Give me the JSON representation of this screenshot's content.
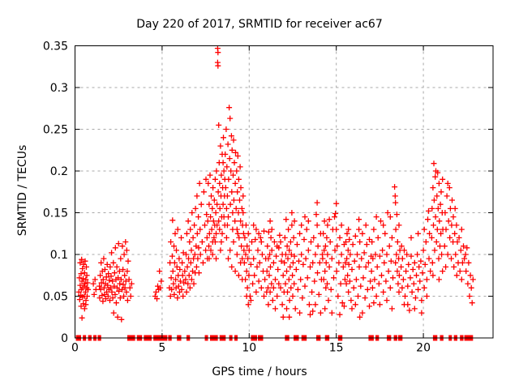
{
  "chart_data": {
    "type": "scatter",
    "title": "Day 220 of 2017, SRMTID for receiver ac67",
    "xlabel": "GPS time / hours",
    "ylabel": "SRMTID / TECUs",
    "xlim": [
      0,
      24
    ],
    "ylim": [
      0,
      0.35
    ],
    "xticks": [
      0,
      5,
      10,
      15,
      20
    ],
    "xtick_labels": [
      "0",
      "5",
      "10",
      "15",
      "20"
    ],
    "yticks": [
      0,
      0.05,
      0.1,
      0.15,
      0.2,
      0.25,
      0.3,
      0.35
    ],
    "ytick_labels": [
      "0",
      "0.05",
      "0.1",
      "0.15",
      "0.2",
      "0.25",
      "0.3",
      "0.35"
    ],
    "grid": true,
    "legend": "none",
    "marker": "plus",
    "marker_color": "#ff0000",
    "grid_color": "#a8a8a8",
    "axis_color": "#000000",
    "xy_format": "flat [x0,y0,x1,y1,...]",
    "xy": [
      0.22,
      0.055,
      0.25,
      0.072,
      0.27,
      0.046,
      0.3,
      0.09,
      0.3,
      0.063,
      0.33,
      0.051,
      0.35,
      0.077,
      0.36,
      0.058,
      0.38,
      0.094,
      0.4,
      0.068,
      0.42,
      0.049,
      0.43,
      0.083,
      0.45,
      0.06,
      0.47,
      0.071,
      0.48,
      0.041,
      0.5,
      0.088,
      0.52,
      0.065,
      0.53,
      0.05,
      0.55,
      0.078,
      0.57,
      0.062,
      0.58,
      0.092,
      0.6,
      0.055,
      0.62,
      0.07,
      0.63,
      0.045,
      0.65,
      0.085,
      0.67,
      0.06,
      0.68,
      0.075,
      0.7,
      0.05,
      0.72,
      0.066,
      0.75,
      0.058,
      0.4,
      0.024,
      0.55,
      0.035,
      1.05,
      0.065,
      1.1,
      0.052,
      1.15,
      0.07,
      1.2,
      0.058,
      0.35,
      0.038,
      0.62,
      0.04,
      1.4,
      0.062,
      1.42,
      0.048,
      1.45,
      0.075,
      1.47,
      0.058,
      1.5,
      0.09,
      1.52,
      0.066,
      1.55,
      0.051,
      1.57,
      0.08,
      1.6,
      0.044,
      1.62,
      0.07,
      1.65,
      0.095,
      1.67,
      0.06,
      1.7,
      0.052,
      1.72,
      0.082,
      1.75,
      0.065,
      1.77,
      0.047,
      1.8,
      0.073,
      1.82,
      0.055,
      1.85,
      0.088,
      1.87,
      0.063,
      1.9,
      0.05,
      1.92,
      0.077,
      1.95,
      0.058,
      1.97,
      0.069,
      2.0,
      0.045,
      2.02,
      0.085,
      2.05,
      0.06,
      2.07,
      0.074,
      2.1,
      0.102,
      2.12,
      0.055,
      2.15,
      0.068,
      2.17,
      0.048,
      2.2,
      0.09,
      2.22,
      0.03,
      2.25,
      0.062,
      2.27,
      0.078,
      2.3,
      0.052,
      2.32,
      0.108,
      2.35,
      0.07,
      2.37,
      0.042,
      2.4,
      0.085,
      2.42,
      0.06,
      2.45,
      0.025,
      2.47,
      0.072,
      2.5,
      0.113,
      2.52,
      0.056,
      2.55,
      0.08,
      2.57,
      0.065,
      2.6,
      0.048,
      2.62,
      0.095,
      2.65,
      0.07,
      2.67,
      0.022,
      2.7,
      0.058,
      2.72,
      0.11,
      2.75,
      0.082,
      2.77,
      0.064,
      2.8,
      0.05,
      2.82,
      0.1,
      2.85,
      0.075,
      2.87,
      0.06,
      2.9,
      0.115,
      2.92,
      0.068,
      2.95,
      0.055,
      2.97,
      0.105,
      3.0,
      0.08,
      3.02,
      0.045,
      3.05,
      0.092,
      3.1,
      0.07,
      3.15,
      0.06,
      3.2,
      0.05,
      3.25,
      0.065,
      4.6,
      0.05,
      4.65,
      0.055,
      4.7,
      0.047,
      4.75,
      0.062,
      4.8,
      0.058,
      4.85,
      0.08,
      4.9,
      0.06,
      4.95,
      0.068,
      5.42,
      0.06,
      5.45,
      0.09,
      5.48,
      0.05,
      5.5,
      0.115,
      5.52,
      0.072,
      5.55,
      0.058,
      5.58,
      0.098,
      5.6,
      0.141,
      5.62,
      0.08,
      5.65,
      0.065,
      5.68,
      0.11,
      5.7,
      0.052,
      5.72,
      0.09,
      5.75,
      0.125,
      5.78,
      0.07,
      5.8,
      0.06,
      5.82,
      0.105,
      5.85,
      0.085,
      5.88,
      0.048,
      5.9,
      0.13,
      5.92,
      0.075,
      5.95,
      0.062,
      5.98,
      0.095,
      6.0,
      0.055,
      6.02,
      0.082,
      6.05,
      0.068,
      6.1,
      0.12,
      6.12,
      0.058,
      6.15,
      0.09,
      6.18,
      0.075,
      6.2,
      0.05,
      6.22,
      0.102,
      6.25,
      0.066,
      6.3,
      0.08,
      6.35,
      0.07,
      6.38,
      0.1,
      6.4,
      0.055,
      6.42,
      0.125,
      6.45,
      0.085,
      6.48,
      0.065,
      6.5,
      0.14,
      6.52,
      0.095,
      6.55,
      0.075,
      6.58,
      0.115,
      6.6,
      0.06,
      6.62,
      0.13,
      6.65,
      0.09,
      6.68,
      0.105,
      6.7,
      0.07,
      6.72,
      0.15,
      6.75,
      0.08,
      6.78,
      0.12,
      6.8,
      0.095,
      6.82,
      0.065,
      6.85,
      0.135,
      6.88,
      0.1,
      6.9,
      0.078,
      6.92,
      0.155,
      6.95,
      0.11,
      6.98,
      0.085,
      7.0,
      0.17,
      7.02,
      0.125,
      7.05,
      0.095,
      7.08,
      0.145,
      7.1,
      0.108,
      7.12,
      0.078,
      7.15,
      0.185,
      7.18,
      0.13,
      7.2,
      0.1,
      7.25,
      0.16,
      7.3,
      0.115,
      7.35,
      0.09,
      7.4,
      0.175,
      7.45,
      0.135,
      7.5,
      0.105,
      7.52,
      0.19,
      7.55,
      0.148,
      7.58,
      0.12,
      7.6,
      0.095,
      7.62,
      0.14,
      7.65,
      0.185,
      7.68,
      0.11,
      7.7,
      0.16,
      7.72,
      0.125,
      7.75,
      0.195,
      7.78,
      0.145,
      7.8,
      0.105,
      7.82,
      0.17,
      7.85,
      0.13,
      7.88,
      0.155,
      7.9,
      0.115,
      7.92,
      0.18,
      7.95,
      0.14,
      7.98,
      0.12,
      8.0,
      0.165,
      8.02,
      0.135,
      8.05,
      0.19,
      8.08,
      0.15,
      8.1,
      0.125,
      8.12,
      0.2,
      8.15,
      0.16,
      8.19,
      0.347,
      8.21,
      0.342,
      8.19,
      0.33,
      8.21,
      0.326,
      8.22,
      0.175,
      8.25,
      0.14,
      8.28,
      0.21,
      8.3,
      0.185,
      8.32,
      0.155,
      8.35,
      0.23,
      8.38,
      0.17,
      8.4,
      0.195,
      8.42,
      0.145,
      8.45,
      0.22,
      8.48,
      0.18,
      8.5,
      0.16,
      8.52,
      0.24,
      8.55,
      0.2,
      8.58,
      0.17,
      8.6,
      0.19,
      8.05,
      0.115,
      8.3,
      0.13,
      8.45,
      0.125,
      8.55,
      0.145,
      8.1,
      0.095,
      8.35,
      0.105,
      8.6,
      0.135,
      7.7,
      0.095,
      7.9,
      0.1,
      8.25,
      0.255,
      8.5,
      0.21,
      8.4,
      0.115,
      8.15,
      0.135,
      8.62,
      0.22,
      8.65,
      0.18,
      8.68,
      0.25,
      8.7,
      0.155,
      8.72,
      0.205,
      8.75,
      0.17,
      8.78,
      0.232,
      8.8,
      0.145,
      8.82,
      0.19,
      8.85,
      0.276,
      8.88,
      0.215,
      8.9,
      0.263,
      8.92,
      0.16,
      8.95,
      0.2,
      8.98,
      0.242,
      9.0,
      0.175,
      9.02,
      0.225,
      9.05,
      0.15,
      9.08,
      0.195,
      9.1,
      0.237,
      9.12,
      0.165,
      9.15,
      0.21,
      9.18,
      0.14,
      9.2,
      0.185,
      9.22,
      0.222,
      9.25,
      0.155,
      9.28,
      0.2,
      9.3,
      0.13,
      9.32,
      0.175,
      9.35,
      0.218,
      9.38,
      0.15,
      9.4,
      0.19,
      9.42,
      0.12,
      9.45,
      0.165,
      9.48,
      0.205,
      9.5,
      0.14,
      9.52,
      0.18,
      9.55,
      0.11,
      9.58,
      0.155,
      9.6,
      0.095,
      9.62,
      0.135,
      9.65,
      0.17,
      9.68,
      0.125,
      9.7,
      0.105,
      8.7,
      0.12,
      8.9,
      0.105,
      9.1,
      0.115,
      9.3,
      0.1,
      9.5,
      0.09,
      8.8,
      0.095,
      9.0,
      0.085,
      9.2,
      0.08,
      9.4,
      0.075,
      9.6,
      0.07,
      8.75,
      0.135,
      9.05,
      0.13,
      9.35,
      0.125,
      9.65,
      0.15,
      9.72,
      0.09,
      9.75,
      0.12,
      9.78,
      0.07,
      9.8,
      0.1,
      9.82,
      0.135,
      9.85,
      0.08,
      9.88,
      0.11,
      9.9,
      0.06,
      9.92,
      0.095,
      9.95,
      0.125,
      9.98,
      0.075,
      10.0,
      0.105,
      10.05,
      0.05,
      10.1,
      0.088,
      10.15,
      0.115,
      10.2,
      0.065,
      10.25,
      0.095,
      10.3,
      0.075,
      10.35,
      0.118,
      10.4,
      0.055,
      10.45,
      0.085,
      10.5,
      0.105,
      10.55,
      0.068,
      10.6,
      0.09,
      10.65,
      0.12,
      10.7,
      0.06,
      10.75,
      0.1,
      10.8,
      0.08,
      10.85,
      0.128,
      10.9,
      0.07,
      10.95,
      0.095,
      11.0,
      0.055,
      10.1,
      0.045,
      10.4,
      0.13,
      10.7,
      0.115,
      9.85,
      0.05,
      10.55,
      0.125,
      10.25,
      0.135,
      9.95,
      0.04,
      10.85,
      0.05,
      11.02,
      0.08,
      11.05,
      0.11,
      11.08,
      0.06,
      11.1,
      0.095,
      11.12,
      0.127,
      11.15,
      0.075,
      11.18,
      0.1,
      11.2,
      0.055,
      11.22,
      0.085,
      11.25,
      0.12,
      11.28,
      0.065,
      11.3,
      0.105,
      11.35,
      0.045,
      11.4,
      0.09,
      11.45,
      0.115,
      11.5,
      0.07,
      11.55,
      0.098,
      11.6,
      0.05,
      11.65,
      0.082,
      11.7,
      0.108,
      11.75,
      0.123,
      11.8,
      0.06,
      11.85,
      0.092,
      11.9,
      0.04,
      11.95,
      0.075,
      12.0,
      0.055,
      11.3,
      0.13,
      11.5,
      0.035,
      11.7,
      0.065,
      11.9,
      0.1,
      11.1,
      0.04,
      11.6,
      0.11,
      11.4,
      0.06,
      11.8,
      0.115,
      11.2,
      0.14,
      11.95,
      0.025,
      12.02,
      0.09,
      12.05,
      0.12,
      12.08,
      0.065,
      12.1,
      0.1,
      12.12,
      0.142,
      12.15,
      0.08,
      12.18,
      0.11,
      12.2,
      0.055,
      12.22,
      0.095,
      12.25,
      0.13,
      12.28,
      0.07,
      12.3,
      0.105,
      12.32,
      0.045,
      12.35,
      0.085,
      12.38,
      0.115,
      12.4,
      0.06,
      12.42,
      0.1,
      12.45,
      0.135,
      12.48,
      0.075,
      12.5,
      0.05,
      12.52,
      0.09,
      12.55,
      0.12,
      12.58,
      0.065,
      12.6,
      0.098,
      12.65,
      0.035,
      12.7,
      0.082,
      12.75,
      0.112,
      12.8,
      0.058,
      12.85,
      0.092,
      12.9,
      0.125,
      12.95,
      0.07,
      13.0,
      0.1,
      13.05,
      0.048,
      13.1,
      0.088,
      13.15,
      0.118,
      13.2,
      0.062,
      13.25,
      0.095,
      13.3,
      0.13,
      13.35,
      0.072,
      13.4,
      0.105,
      13.45,
      0.04,
      13.5,
      0.085,
      13.55,
      0.115,
      13.6,
      0.055,
      13.65,
      0.09,
      13.7,
      0.12,
      13.75,
      0.068,
      13.8,
      0.1,
      13.85,
      0.148,
      13.9,
      0.135,
      13.92,
      0.078,
      13.95,
      0.11,
      14.0,
      0.052,
      14.05,
      0.09,
      14.1,
      0.125,
      14.15,
      0.07,
      14.2,
      0.1,
      12.3,
      0.025,
      12.6,
      0.14,
      12.9,
      0.03,
      13.2,
      0.145,
      13.5,
      0.028,
      13.8,
      0.04,
      14.1,
      0.03,
      12.45,
      0.15,
      13.4,
      0.14,
      13.0,
      0.135,
      12.15,
      0.035,
      13.65,
      0.032,
      13.9,
      0.162,
      14.22,
      0.095,
      14.25,
      0.125,
      14.28,
      0.07,
      14.3,
      0.105,
      14.32,
      0.14,
      14.35,
      0.08,
      14.38,
      0.11,
      14.4,
      0.06,
      14.42,
      0.09,
      14.45,
      0.12,
      14.48,
      0.065,
      14.5,
      0.1,
      14.55,
      0.045,
      14.6,
      0.085,
      14.65,
      0.115,
      14.7,
      0.058,
      14.75,
      0.095,
      14.8,
      0.13,
      14.85,
      0.072,
      14.9,
      0.145,
      14.92,
      0.105,
      14.95,
      0.149,
      15.0,
      0.161,
      15.02,
      0.08,
      15.05,
      0.11,
      15.1,
      0.05,
      15.15,
      0.09,
      15.2,
      0.12,
      15.25,
      0.065,
      15.3,
      0.1,
      15.35,
      0.042,
      15.4,
      0.085,
      15.45,
      0.112,
      15.5,
      0.07,
      14.5,
      0.135,
      15.0,
      0.13,
      15.3,
      0.135,
      14.35,
      0.035,
      14.75,
      0.03,
      15.2,
      0.028,
      14.6,
      0.142,
      15.45,
      0.038,
      15.52,
      0.09,
      15.55,
      0.115,
      15.58,
      0.065,
      15.6,
      0.095,
      15.62,
      0.125,
      15.65,
      0.075,
      15.68,
      0.105,
      15.7,
      0.055,
      15.72,
      0.088,
      15.75,
      0.118,
      15.78,
      0.068,
      15.8,
      0.1,
      15.85,
      0.045,
      15.9,
      0.082,
      15.95,
      0.112,
      16.0,
      0.06,
      16.05,
      0.092,
      16.1,
      0.122,
      16.15,
      0.07,
      16.2,
      0.1,
      16.25,
      0.05,
      16.3,
      0.142,
      16.32,
      0.085,
      16.35,
      0.115,
      16.4,
      0.062,
      16.45,
      0.095,
      16.5,
      0.125,
      16.55,
      0.072,
      16.6,
      0.102,
      16.65,
      0.048,
      16.7,
      0.085,
      16.75,
      0.112,
      16.8,
      0.058,
      16.85,
      0.09,
      16.9,
      0.118,
      16.95,
      0.068,
      17.0,
      0.098,
      16.3,
      0.13,
      15.9,
      0.035,
      16.5,
      0.03,
      16.1,
      0.04,
      16.9,
      0.038,
      15.7,
      0.13,
      16.7,
      0.135,
      16.35,
      0.025,
      17.02,
      0.08,
      17.05,
      0.115,
      17.08,
      0.06,
      17.1,
      0.095,
      17.15,
      0.13,
      17.2,
      0.07,
      17.25,
      0.1,
      17.3,
      0.05,
      17.35,
      0.085,
      17.4,
      0.12,
      17.45,
      0.065,
      17.5,
      0.098,
      17.55,
      0.14,
      17.6,
      0.075,
      17.65,
      0.105,
      17.7,
      0.055,
      17.75,
      0.09,
      17.8,
      0.125,
      17.85,
      0.068,
      17.9,
      0.1,
      17.95,
      0.15,
      18.0,
      0.08,
      18.05,
      0.11,
      18.1,
      0.06,
      18.15,
      0.092,
      18.2,
      0.12,
      18.25,
      0.072,
      17.3,
      0.145,
      17.7,
      0.135,
      18.1,
      0.145,
      17.5,
      0.04,
      17.9,
      0.045,
      18.2,
      0.035,
      17.15,
      0.042,
      18.35,
      0.181,
      18.38,
      0.17,
      18.4,
      0.162,
      18.42,
      0.13,
      18.45,
      0.1,
      18.48,
      0.148,
      18.5,
      0.08,
      18.52,
      0.115,
      18.55,
      0.065,
      18.58,
      0.095,
      18.6,
      0.135,
      18.62,
      0.075,
      18.65,
      0.105,
      18.4,
      0.09,
      18.6,
      0.055,
      18.72,
      0.085,
      18.75,
      0.11,
      18.78,
      0.06,
      18.8,
      0.095,
      18.85,
      0.07,
      18.9,
      0.105,
      18.95,
      0.05,
      19.0,
      0.08,
      19.05,
      0.1,
      19.1,
      0.062,
      19.15,
      0.088,
      19.2,
      0.033,
      19.25,
      0.072,
      19.3,
      0.098,
      19.35,
      0.055,
      19.4,
      0.082,
      19.45,
      0.065,
      19.5,
      0.09,
      19.55,
      0.048,
      19.6,
      0.075,
      19.65,
      0.1,
      19.7,
      0.058,
      19.75,
      0.085,
      19.8,
      0.068,
      19.85,
      0.092,
      19.9,
      0.045,
      19.95,
      0.078,
      20.0,
      0.105,
      20.05,
      0.06,
      20.1,
      0.088,
      20.15,
      0.115,
      20.2,
      0.07,
      20.25,
      0.142,
      20.3,
      0.152,
      20.32,
      0.095,
      20.35,
      0.125,
      20.4,
      0.08,
      19.1,
      0.04,
      19.5,
      0.035,
      19.9,
      0.03,
      20.2,
      0.05,
      18.9,
      0.04,
      19.3,
      0.12,
      19.7,
      0.125,
      20.05,
      0.13,
      20.48,
      0.12,
      20.5,
      0.155,
      20.52,
      0.09,
      20.55,
      0.18,
      20.58,
      0.135,
      20.6,
      0.209,
      20.62,
      0.165,
      20.65,
      0.105,
      20.68,
      0.193,
      20.7,
      0.145,
      20.72,
      0.2,
      20.75,
      0.115,
      20.78,
      0.17,
      20.8,
      0.13,
      20.82,
      0.198,
      20.85,
      0.155,
      20.88,
      0.095,
      20.9,
      0.185,
      20.92,
      0.14,
      20.95,
      0.11,
      20.98,
      0.16,
      21.0,
      0.125,
      21.02,
      0.175,
      21.05,
      0.1,
      21.08,
      0.15,
      21.1,
      0.08,
      21.12,
      0.13,
      20.55,
      0.075,
      20.9,
      0.07,
      21.1,
      0.19,
      21.22,
      0.11,
      21.25,
      0.15,
      21.28,
      0.085,
      21.3,
      0.13,
      21.35,
      0.17,
      21.4,
      0.1,
      21.45,
      0.14,
      21.5,
      0.18,
      21.52,
      0.12,
      21.55,
      0.155,
      21.6,
      0.095,
      21.62,
      0.135,
      21.65,
      0.165,
      21.7,
      0.115,
      21.72,
      0.145,
      21.75,
      0.085,
      21.8,
      0.125,
      21.82,
      0.155,
      21.85,
      0.1,
      21.9,
      0.135,
      21.92,
      0.075,
      21.95,
      0.115,
      22.0,
      0.09,
      22.05,
      0.12,
      22.1,
      0.08,
      22.15,
      0.105,
      22.2,
      0.13,
      22.25,
      0.09,
      22.3,
      0.11,
      22.35,
      0.095,
      21.4,
      0.185,
      22.2,
      0.07,
      22.42,
      0.1,
      22.45,
      0.08,
      22.5,
      0.108,
      22.55,
      0.065,
      22.6,
      0.09,
      22.65,
      0.05,
      22.7,
      0.075,
      22.75,
      0.06,
      22.8,
      0.042,
      22.85,
      0.07
    ],
    "zero_value_runs": [
      [
        0.05,
        0.35
      ],
      [
        0.45,
        0.6
      ],
      [
        0.75,
        0.95
      ],
      [
        1.05,
        1.2
      ],
      [
        1.3,
        1.5
      ],
      [
        3.0,
        3.45
      ],
      [
        3.55,
        3.85
      ],
      [
        3.95,
        4.4
      ],
      [
        4.5,
        5.3
      ],
      [
        5.35,
        5.55
      ],
      [
        5.85,
        6.1
      ],
      [
        6.4,
        6.6
      ],
      [
        7.45,
        7.6
      ],
      [
        7.75,
        8.2
      ],
      [
        8.3,
        8.65
      ],
      [
        8.85,
        9.0
      ],
      [
        9.15,
        9.3
      ],
      [
        10.1,
        10.45
      ],
      [
        10.5,
        10.8
      ],
      [
        12.05,
        12.3
      ],
      [
        12.55,
        12.85
      ],
      [
        13.0,
        13.3
      ],
      [
        13.85,
        14.1
      ],
      [
        14.35,
        14.6
      ],
      [
        15.1,
        15.35
      ],
      [
        16.85,
        17.15
      ],
      [
        17.25,
        17.45
      ],
      [
        17.9,
        18.15
      ],
      [
        18.3,
        18.5
      ],
      [
        18.55,
        18.8
      ],
      [
        20.55,
        20.8
      ],
      [
        20.95,
        21.15
      ],
      [
        21.45,
        21.6
      ],
      [
        21.75,
        21.95
      ],
      [
        22.1,
        22.3
      ],
      [
        22.35,
        22.85
      ]
    ]
  }
}
